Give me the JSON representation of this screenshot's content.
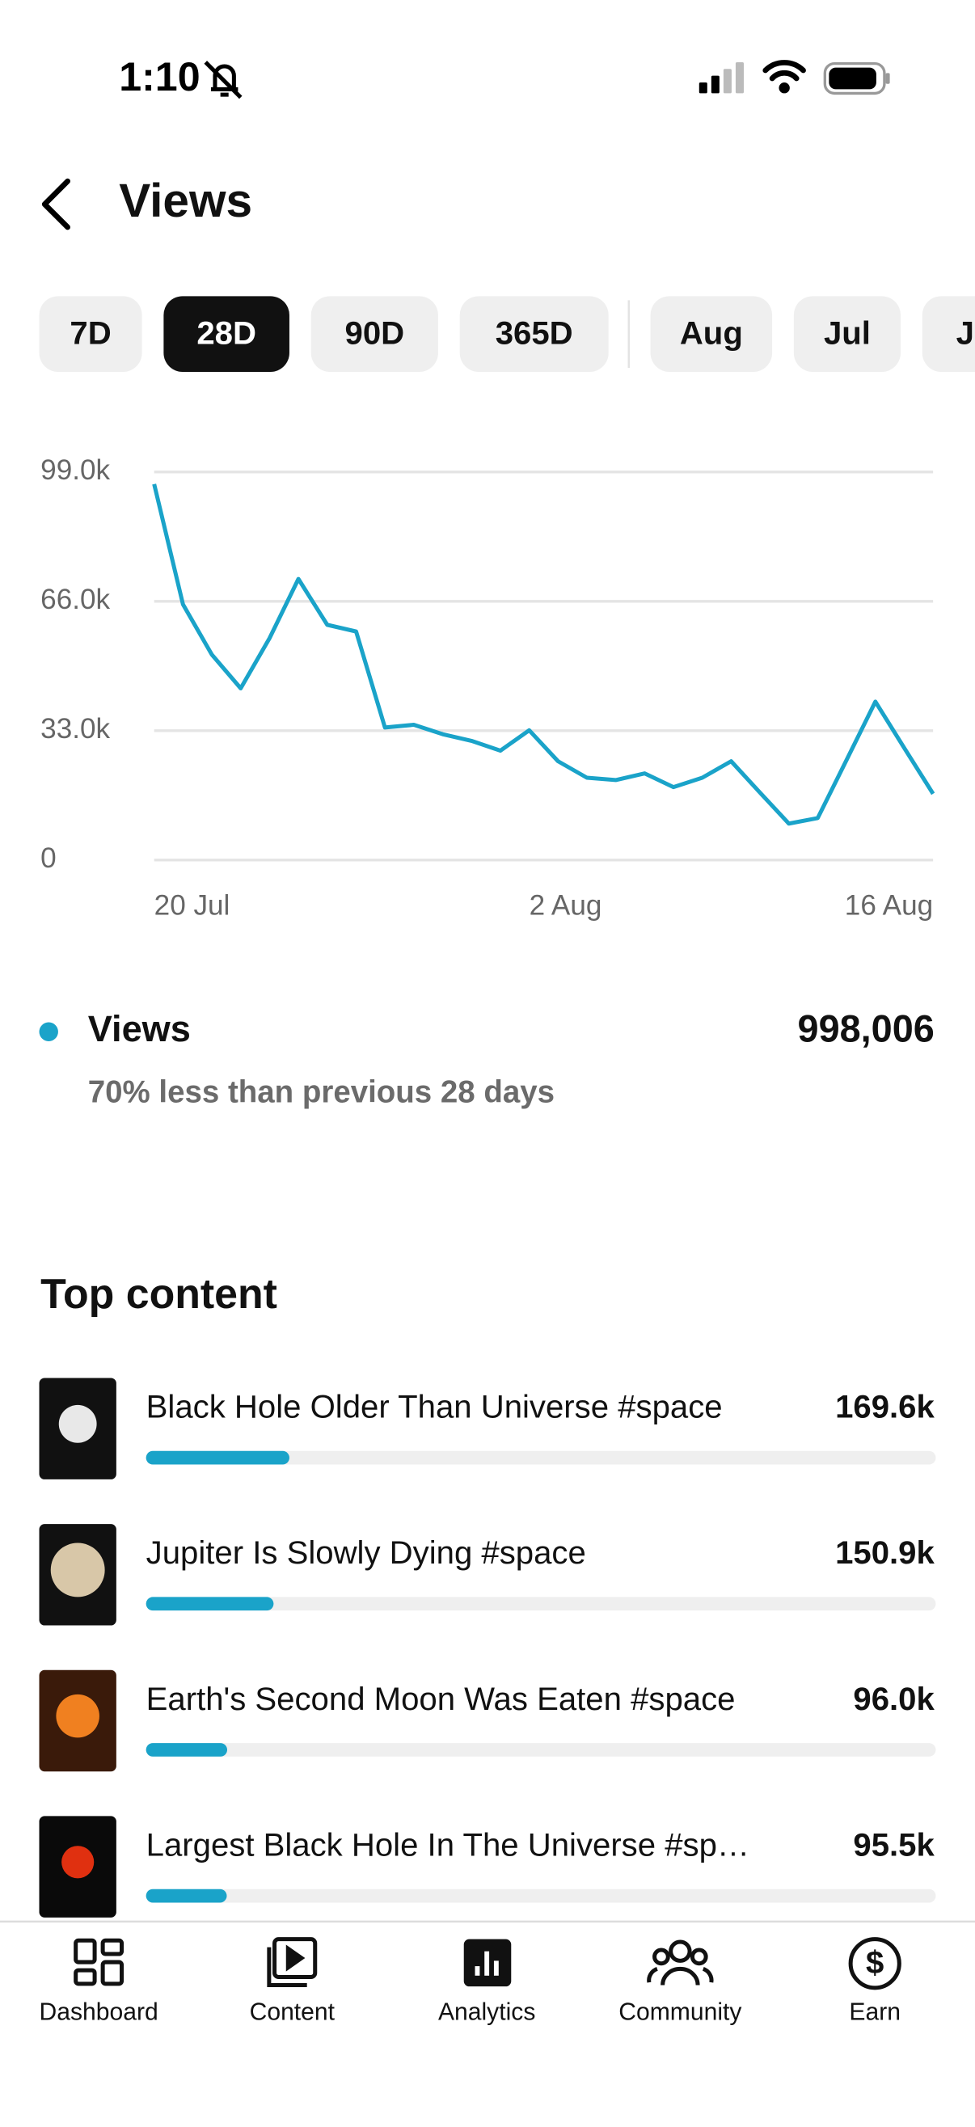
{
  "status_bar": {
    "time": "1:10"
  },
  "header": {
    "title": "Views"
  },
  "tabs": [
    "7D",
    "28D",
    "90D",
    "365D",
    "Aug",
    "Jul",
    "Ju"
  ],
  "selected_tab": 1,
  "chart_data": {
    "type": "line",
    "x": [
      "20 Jul",
      null,
      null,
      null,
      null,
      null,
      null,
      null,
      null,
      null,
      null,
      null,
      null,
      "2 Aug",
      null,
      null,
      null,
      null,
      null,
      null,
      null,
      null,
      null,
      null,
      null,
      null,
      null,
      "16 Aug"
    ],
    "series": [
      {
        "name": "Views",
        "color": "#1aa3c9",
        "values": [
          95900,
          65200,
          52400,
          43800,
          56600,
          71700,
          60000,
          58300,
          33800,
          34500,
          32100,
          30400,
          27900,
          33100,
          25200,
          21000,
          20400,
          22100,
          18600,
          21000,
          25200,
          17200,
          9300,
          10700,
          25500,
          40400,
          28600,
          16900
        ]
      }
    ],
    "ylim": [
      0,
      99000
    ],
    "yticks": [
      0,
      {
        "value": 33000,
        "label": "33.0k"
      },
      {
        "value": 66000,
        "label": "66.0k"
      },
      {
        "value": 99000,
        "label": "99.0k"
      }
    ],
    "grid": true
  },
  "summary": {
    "total": "998,006",
    "comparison": "70% less than previous 28 days"
  },
  "top_content": {
    "title": "Top content",
    "items": [
      {
        "title": "Black Hole Older Than Universe #space",
        "views": 169600,
        "views_label": "169.6k"
      },
      {
        "title": "Jupiter Is Slowly Dying #space",
        "views": 150900,
        "views_label": "150.9k"
      },
      {
        "title": "Earth's Second Moon Was Eaten #space",
        "views": 96000,
        "views_label": "96.0k"
      },
      {
        "title": "Largest Black Hole In The Universe #sp…",
        "views": 95500,
        "views_label": "95.5k"
      }
    ]
  },
  "nav": [
    "Dashboard",
    "Content",
    "Analytics",
    "Community",
    "Earn"
  ]
}
